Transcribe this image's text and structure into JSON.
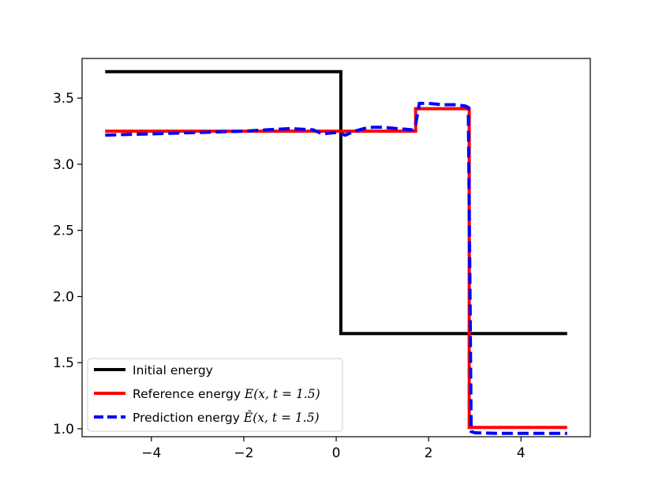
{
  "chart_data": {
    "type": "line",
    "title": "",
    "xlabel": "",
    "ylabel": "",
    "xlim": [
      -5.5,
      5.5
    ],
    "ylim": [
      0.94,
      3.8
    ],
    "xticks": [
      -4,
      -2,
      0,
      2,
      4
    ],
    "xtick_labels": [
      "−4",
      "−2",
      "0",
      "2",
      "4"
    ],
    "yticks": [
      1.0,
      1.5,
      2.0,
      2.5,
      3.0,
      3.5
    ],
    "ytick_labels": [
      "1.0",
      "1.5",
      "2.0",
      "2.5",
      "3.0",
      "3.5"
    ],
    "grid": false,
    "legend_position": "lower-left",
    "series": [
      {
        "name": "Initial energy",
        "color": "#000000",
        "style": "solid",
        "x": [
          -5,
          0.1,
          0.1,
          5
        ],
        "y": [
          3.7,
          3.7,
          1.72,
          1.72
        ]
      },
      {
        "name": "Reference energy E(x, t = 1.5)",
        "name_prefix": "Reference energy ",
        "name_math": "E(x, t = 1.5)",
        "color": "#ff0000",
        "style": "solid",
        "x": [
          -5,
          1.72,
          1.72,
          2.88,
          2.88,
          5
        ],
        "y": [
          3.25,
          3.25,
          3.42,
          3.42,
          1.01,
          1.01
        ]
      },
      {
        "name": "Prediction energy Ê(x, t = 1.5)",
        "name_prefix": "Prediction energy ",
        "name_math": "Ê(x, t = 1.5)",
        "color": "#0000ff",
        "style": "dashed",
        "x": [
          -5,
          -4.5,
          -4.0,
          -3.5,
          -3.0,
          -2.5,
          -2.0,
          -1.5,
          -1.0,
          -0.5,
          -0.3,
          0.0,
          0.2,
          0.4,
          0.6,
          0.8,
          1.0,
          1.3,
          1.5,
          1.65,
          1.72,
          1.8,
          2.0,
          2.3,
          2.6,
          2.8,
          2.86,
          2.9,
          2.92,
          3.0,
          3.5,
          4.0,
          4.5,
          5.0
        ],
        "y": [
          3.22,
          3.225,
          3.23,
          3.235,
          3.24,
          3.245,
          3.25,
          3.26,
          3.27,
          3.26,
          3.23,
          3.24,
          3.22,
          3.25,
          3.27,
          3.28,
          3.28,
          3.27,
          3.265,
          3.26,
          3.3,
          3.46,
          3.46,
          3.45,
          3.45,
          3.44,
          3.43,
          1.9,
          0.98,
          0.97,
          0.965,
          0.965,
          0.965,
          0.965
        ]
      }
    ]
  }
}
